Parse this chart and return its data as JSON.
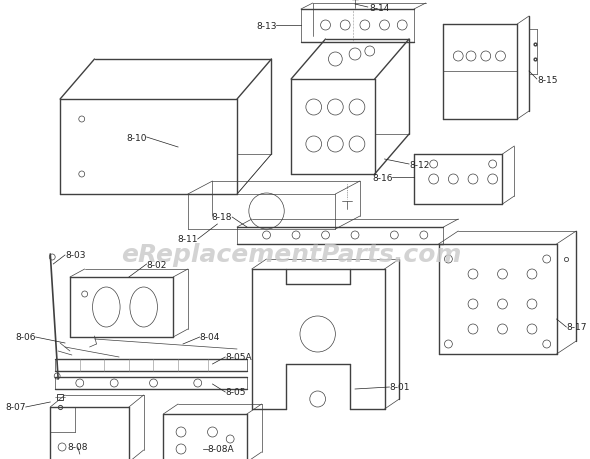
{
  "bg_color": "#ffffff",
  "line_color": "#404040",
  "label_color": "#222222",
  "watermark_text": "eReplacementParts.com",
  "watermark_color": "#cccccc",
  "label_fontsize": 6.5,
  "lw": 0.8,
  "lw_thin": 0.5,
  "lw_thick": 1.0
}
